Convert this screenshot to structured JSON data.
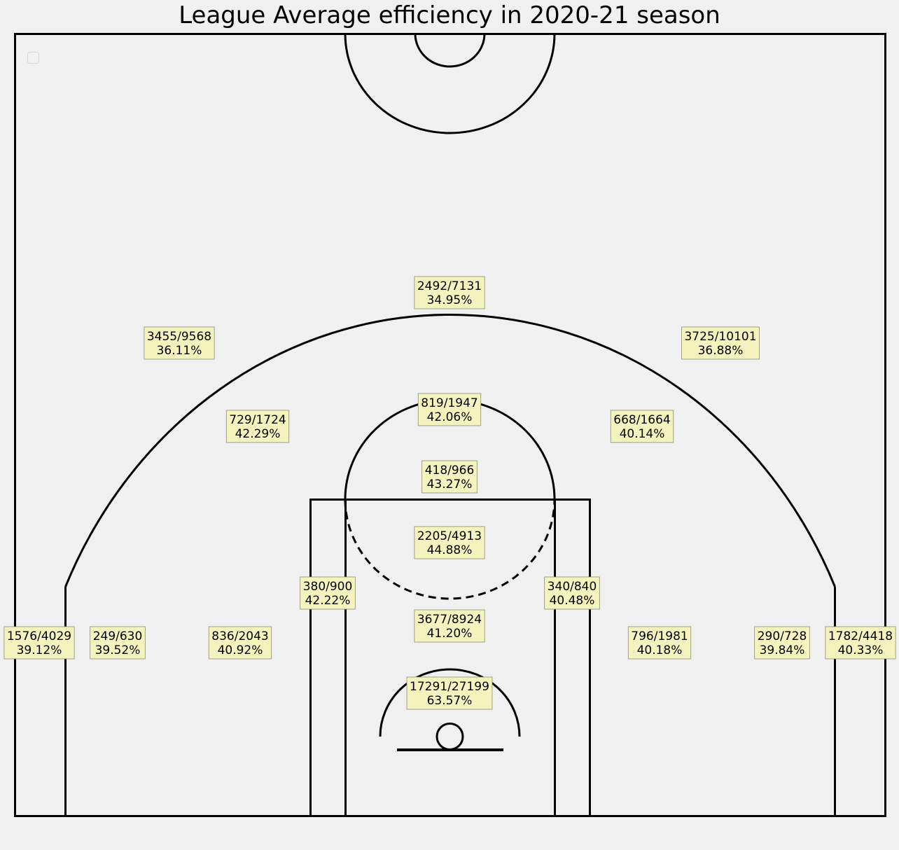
{
  "chart_data": {
    "type": "table",
    "title": "League Average efficiency in 2020-21 season",
    "label_box_color": "#f5f3bd",
    "background_color": "#f0f0f0",
    "line_color": "#000000",
    "zones": [
      {
        "id": "above-break-3-center",
        "made_attempted": "2492/7131",
        "pct": "34.95%"
      },
      {
        "id": "above-break-3-left",
        "made_attempted": "3455/9568",
        "pct": "36.11%"
      },
      {
        "id": "above-break-3-right",
        "made_attempted": "3725/10101",
        "pct": "36.88%"
      },
      {
        "id": "mid-range-top-center",
        "made_attempted": "819/1947",
        "pct": "42.06%"
      },
      {
        "id": "mid-range-left-wing",
        "made_attempted": "729/1724",
        "pct": "42.29%"
      },
      {
        "id": "mid-range-right-wing",
        "made_attempted": "668/1664",
        "pct": "40.14%"
      },
      {
        "id": "mid-range-free-throw",
        "made_attempted": "418/966",
        "pct": "43.27%"
      },
      {
        "id": "paint-upper",
        "made_attempted": "2205/4913",
        "pct": "44.88%"
      },
      {
        "id": "mid-range-left-elbow",
        "made_attempted": "380/900",
        "pct": "42.22%"
      },
      {
        "id": "mid-range-right-elbow",
        "made_attempted": "340/840",
        "pct": "40.48%"
      },
      {
        "id": "paint-lower",
        "made_attempted": "3677/8924",
        "pct": "41.20%"
      },
      {
        "id": "restricted-area",
        "made_attempted": "17291/27199",
        "pct": "63.57%"
      },
      {
        "id": "left-corner-3",
        "made_attempted": "1576/4029",
        "pct": "39.12%"
      },
      {
        "id": "mid-range-left-baseline",
        "made_attempted": "249/630",
        "pct": "39.52%"
      },
      {
        "id": "mid-range-left-short",
        "made_attempted": "836/2043",
        "pct": "40.92%"
      },
      {
        "id": "mid-range-right-short",
        "made_attempted": "796/1981",
        "pct": "40.18%"
      },
      {
        "id": "mid-range-right-baseline",
        "made_attempted": "290/728",
        "pct": "39.84%"
      },
      {
        "id": "right-corner-3",
        "made_attempted": "1782/4418",
        "pct": "40.33%"
      }
    ]
  }
}
